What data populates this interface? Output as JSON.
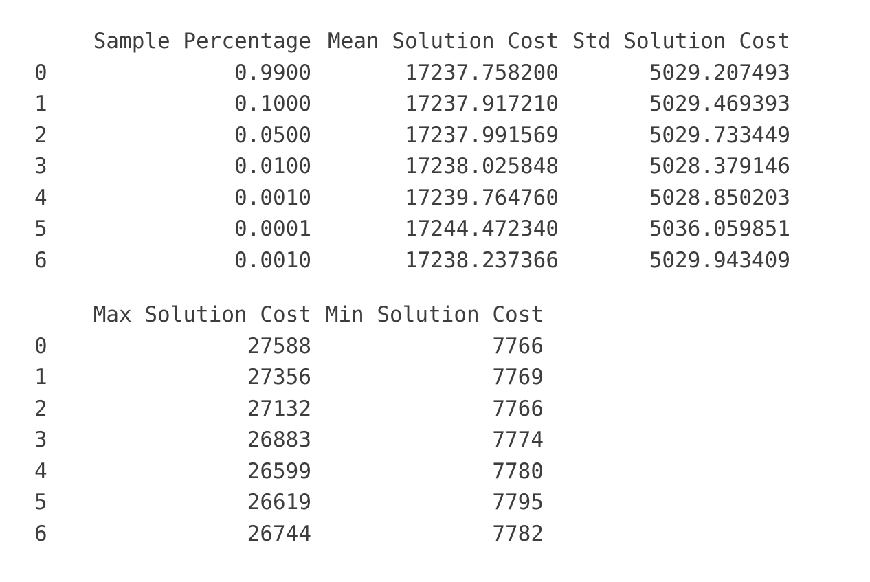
{
  "output": {
    "block1": {
      "columns": [
        "Sample Percentage",
        "Mean Solution Cost",
        "Std Solution Cost"
      ],
      "rows": [
        {
          "index": "0",
          "cells": [
            "0.9900",
            "17237.758200",
            "5029.207493"
          ]
        },
        {
          "index": "1",
          "cells": [
            "0.1000",
            "17237.917210",
            "5029.469393"
          ]
        },
        {
          "index": "2",
          "cells": [
            "0.0500",
            "17237.991569",
            "5029.733449"
          ]
        },
        {
          "index": "3",
          "cells": [
            "0.0100",
            "17238.025848",
            "5028.379146"
          ]
        },
        {
          "index": "4",
          "cells": [
            "0.0010",
            "17239.764760",
            "5028.850203"
          ]
        },
        {
          "index": "5",
          "cells": [
            "0.0001",
            "17244.472340",
            "5036.059851"
          ]
        },
        {
          "index": "6",
          "cells": [
            "0.0010",
            "17238.237366",
            "5029.943409"
          ]
        }
      ]
    },
    "block2": {
      "columns": [
        "Max Solution Cost",
        "Min Solution Cost"
      ],
      "rows": [
        {
          "index": "0",
          "cells": [
            "27588",
            "7766"
          ]
        },
        {
          "index": "1",
          "cells": [
            "27356",
            "7769"
          ]
        },
        {
          "index": "2",
          "cells": [
            "27132",
            "7766"
          ]
        },
        {
          "index": "3",
          "cells": [
            "26883",
            "7774"
          ]
        },
        {
          "index": "4",
          "cells": [
            "26599",
            "7780"
          ]
        },
        {
          "index": "5",
          "cells": [
            "26619",
            "7795"
          ]
        },
        {
          "index": "6",
          "cells": [
            "26744",
            "7782"
          ]
        }
      ]
    }
  }
}
